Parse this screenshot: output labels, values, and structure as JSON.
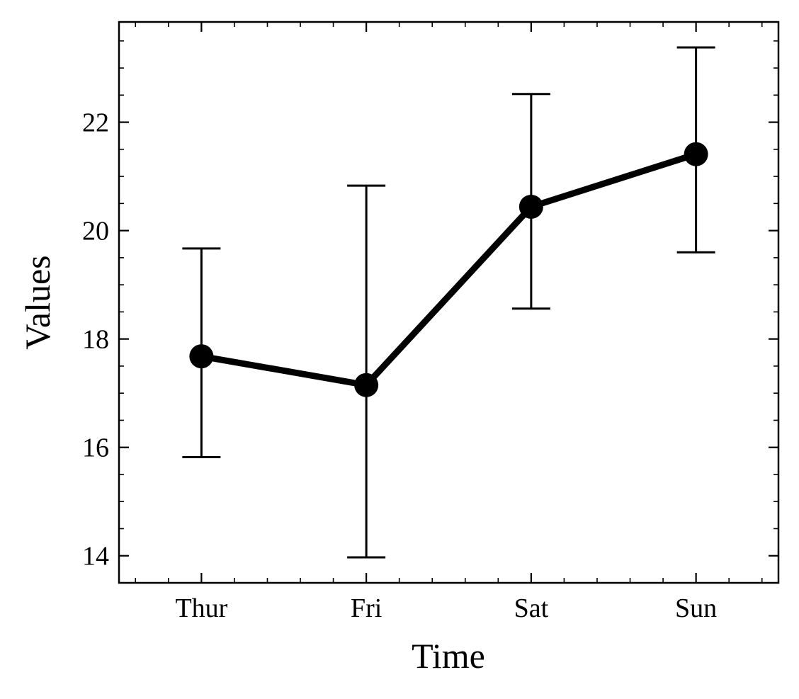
{
  "chart_data": {
    "type": "line",
    "title": "",
    "xlabel": "Time",
    "ylabel": "Values",
    "categories": [
      "Thur",
      "Fri",
      "Sat",
      "Sun"
    ],
    "series": [
      {
        "values": [
          17.68,
          17.15,
          20.44,
          21.41
        ],
        "error_low": [
          15.82,
          13.97,
          18.56,
          19.6
        ],
        "error_high": [
          19.67,
          20.83,
          22.52,
          23.38
        ],
        "color": "#000000"
      }
    ],
    "ylim": [
      13.5,
      23.85
    ],
    "y_ticks": [
      "14",
      "16",
      "18",
      "20",
      "22"
    ],
    "grid": false,
    "legend": "none"
  }
}
